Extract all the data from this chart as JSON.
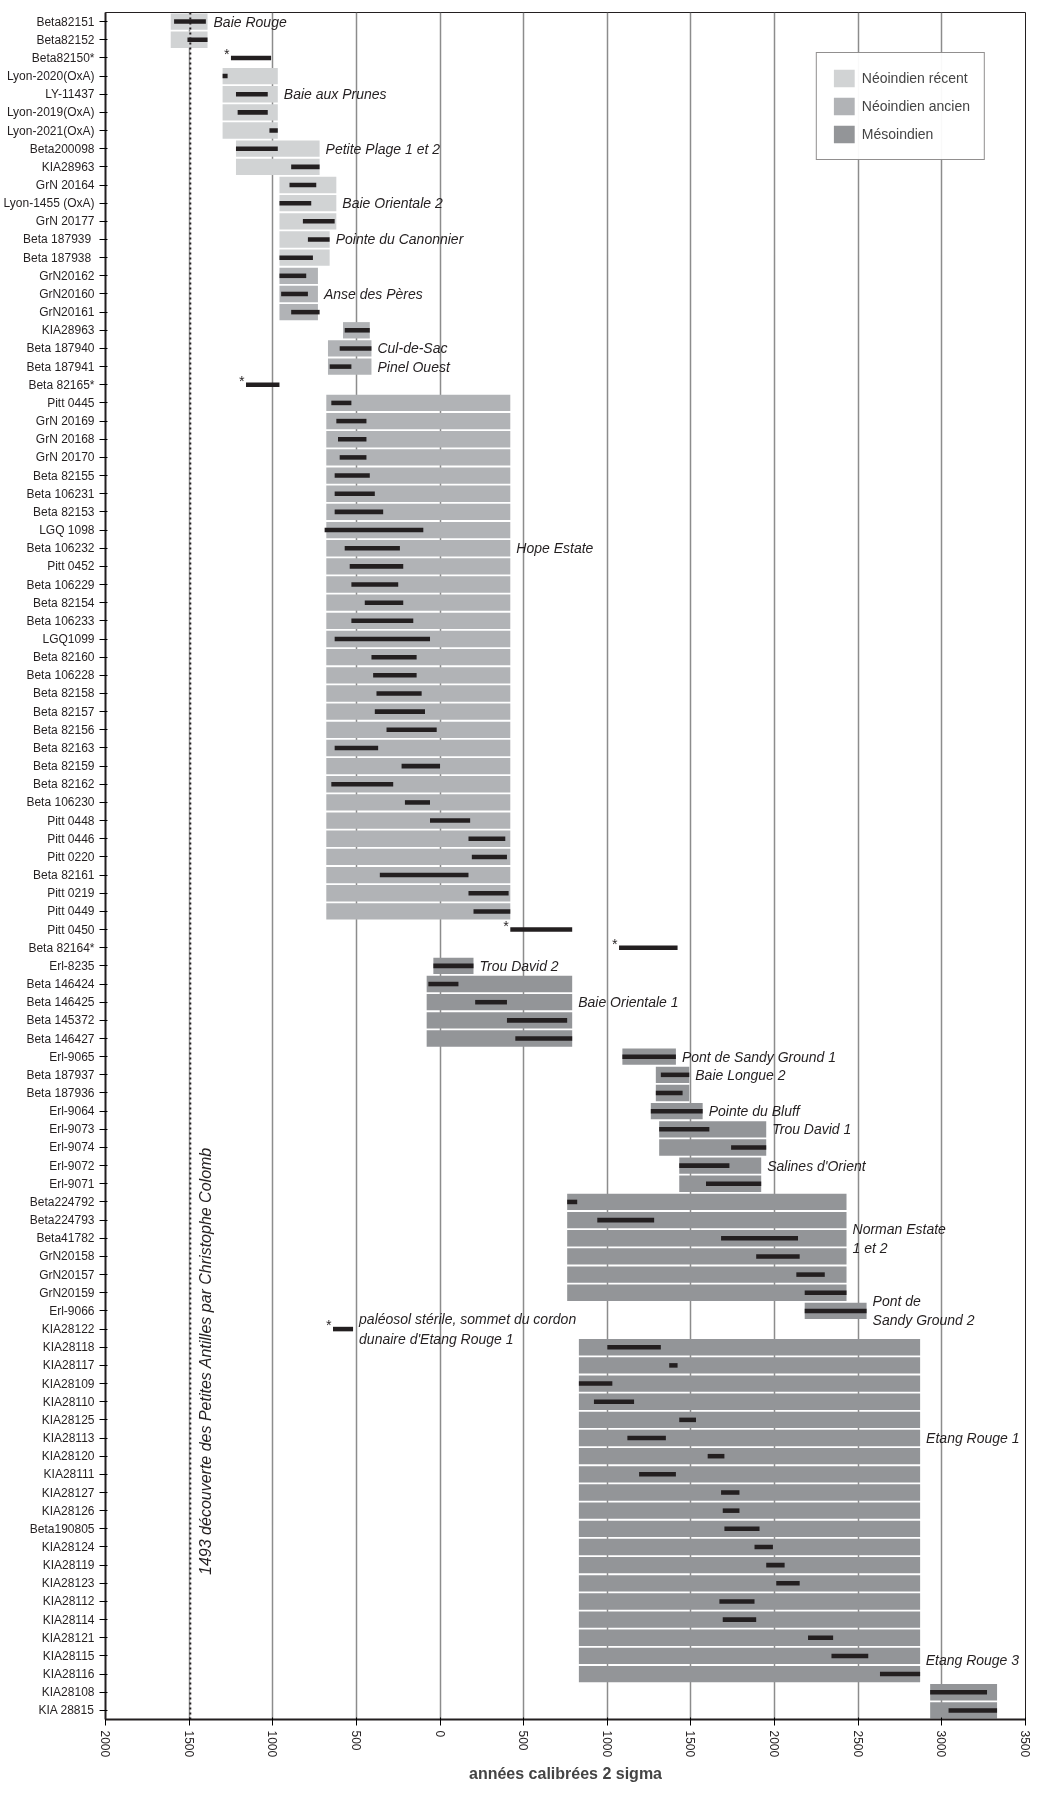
{
  "chart_data": {
    "type": "bar",
    "orientation": "horizontal",
    "xlabel": "années calibrées 2 sigma",
    "categories": [
      "Beta82151",
      "Beta82152",
      "Beta82150*",
      "Lyon-2020(OxA)",
      "LY-11437",
      "Lyon-2019(OxA)",
      "Lyon-2021(OxA)",
      "Beta200098",
      "KIA28963",
      "GrN 20164",
      "Lyon-1455 (OxA)",
      "GrN 20177",
      "Beta  187939",
      "Beta  187938",
      "GrN20162",
      "GrN20160",
      "GrN20161",
      "KIA28963",
      "Beta 187940",
      "Beta 187941",
      "Beta 82165*",
      "Pitt 0445",
      "GrN 20169",
      "GrN 20168",
      "GrN 20170",
      "Beta 82155",
      "Beta 106231",
      "Beta 82153",
      "LGQ 1098",
      "Beta 106232",
      "Pitt 0452",
      "Beta 106229",
      "Beta 82154",
      "Beta 106233",
      "LGQ1099",
      "Beta 82160",
      "Beta 106228",
      "Beta 82158",
      "Beta 82157",
      "Beta 82156",
      "Beta 82163",
      "Beta 82159",
      "Beta 82162",
      "Beta 106230",
      "Pitt 0448",
      "Pitt 0446",
      "Pitt 0220",
      "Beta 82161",
      "Pitt 0219",
      "Pitt 0449",
      "Pitt 0450",
      "Beta 82164*",
      "Erl-8235",
      "Beta 146424",
      "Beta 146425",
      "Beta 145372",
      "Beta 146427",
      "Erl-9065",
      "Beta 187937",
      "Beta 187936",
      "Erl-9064",
      "Erl-9073",
      "Erl-9074",
      "Erl-9072",
      "Erl-9071",
      "Beta224792",
      "Beta224793",
      "Beta41782",
      "GrN20158",
      "GrN20157",
      "GrN20159",
      "Erl-9066",
      "KIA28122",
      "KIA28118",
      "KIA28117",
      "KIA28109",
      "KIA28110",
      "KIA28125",
      "KIA28113",
      "KIA28120",
      "KIA28111",
      "KIA28127",
      "KIA28126",
      "Beta190805",
      "KIA28124",
      "KIA28119",
      "KIA28123",
      "KIA28112",
      "KIA28114",
      "KIA28121",
      "KIA28115",
      "KIA28116",
      "KIA28108",
      "KIA 28815"
    ],
    "series": [
      {
        "name": "Néoindien récent",
        "color": "#d1d3d4",
        "base": [
          -1610,
          -1610,
          null,
          -1300,
          -1300,
          -1300,
          -1300,
          -1220,
          -1220,
          -960,
          -960,
          -960,
          -960,
          -960,
          null,
          null,
          null,
          null,
          null,
          null,
          null,
          null,
          null,
          null,
          null,
          null,
          null,
          null,
          null,
          null,
          null,
          null,
          null,
          null,
          null,
          null,
          null,
          null,
          null,
          null,
          null,
          null,
          null,
          null,
          null,
          null,
          null,
          null,
          null,
          null,
          null,
          null,
          null,
          null,
          null,
          null,
          null,
          null,
          null,
          null,
          null,
          null,
          null,
          null,
          null,
          null,
          null,
          null,
          null,
          null,
          null,
          null,
          null,
          null,
          null,
          null,
          null,
          null,
          null,
          null,
          null,
          null,
          null,
          null,
          null,
          null,
          null,
          null,
          null,
          null,
          null,
          null,
          null,
          null
        ],
        "values": [
          220,
          220,
          null,
          330,
          330,
          330,
          330,
          500,
          500,
          340,
          340,
          340,
          300,
          300,
          null,
          null,
          null,
          null,
          null,
          null,
          null,
          null,
          null,
          null,
          null,
          null,
          null,
          null,
          null,
          null,
          null,
          null,
          null,
          null,
          null,
          null,
          null,
          null,
          null,
          null,
          null,
          null,
          null,
          null,
          null,
          null,
          null,
          null,
          null,
          null,
          null,
          null,
          null,
          null,
          null,
          null,
          null,
          null,
          null,
          null,
          null,
          null,
          null,
          null,
          null,
          null,
          null,
          null,
          null,
          null,
          null,
          null,
          null,
          null,
          null,
          null,
          null,
          null,
          null,
          null,
          null,
          null,
          null,
          null,
          null,
          null,
          null,
          null,
          null,
          null,
          null,
          null,
          null,
          null
        ]
      },
      {
        "name": "Néoindien ancien",
        "color": "#b1b3b6",
        "base": [
          null,
          null,
          null,
          null,
          null,
          null,
          null,
          null,
          null,
          null,
          null,
          null,
          null,
          null,
          -960,
          -960,
          -960,
          -580,
          -670,
          -670,
          null,
          -680,
          -680,
          -680,
          -680,
          -680,
          -680,
          -680,
          -680,
          -680,
          -680,
          -680,
          -680,
          -680,
          -680,
          -680,
          -680,
          -680,
          -680,
          -680,
          -680,
          -680,
          -680,
          -680,
          -680,
          -680,
          -680,
          -680,
          -680,
          -680,
          null,
          null,
          null,
          null,
          null,
          null,
          null,
          null,
          null,
          null,
          null,
          null,
          null,
          null,
          null,
          null,
          null,
          null,
          null,
          null,
          null,
          null,
          null,
          null,
          null,
          null,
          null,
          null,
          null,
          null,
          null,
          null,
          null,
          null,
          null,
          null,
          null,
          null,
          null,
          null,
          null,
          null,
          null,
          null
        ],
        "values": [
          null,
          null,
          null,
          null,
          null,
          null,
          null,
          null,
          null,
          null,
          null,
          null,
          null,
          null,
          230,
          230,
          230,
          160,
          260,
          260,
          null,
          1100,
          1100,
          1100,
          1100,
          1100,
          1100,
          1100,
          1100,
          1100,
          1100,
          1100,
          1100,
          1100,
          1100,
          1100,
          1100,
          1100,
          1100,
          1100,
          1100,
          1100,
          1100,
          1100,
          1100,
          1100,
          1100,
          1100,
          1100,
          1100,
          null,
          null,
          null,
          null,
          null,
          null,
          null,
          null,
          null,
          null,
          null,
          null,
          null,
          null,
          null,
          null,
          null,
          null,
          null,
          null,
          null,
          null,
          null,
          null,
          null,
          null,
          null,
          null,
          null,
          null,
          null,
          null,
          null,
          null,
          null,
          null,
          null,
          null,
          null,
          null,
          null,
          null,
          null,
          null
        ]
      },
      {
        "name": "Mésoindien",
        "color": "#939598",
        "base": [
          null,
          null,
          null,
          null,
          null,
          null,
          null,
          null,
          null,
          null,
          null,
          null,
          null,
          null,
          null,
          null,
          null,
          null,
          null,
          null,
          null,
          null,
          null,
          null,
          null,
          null,
          null,
          null,
          null,
          null,
          null,
          null,
          null,
          null,
          null,
          null,
          null,
          null,
          null,
          null,
          null,
          null,
          null,
          null,
          null,
          null,
          null,
          null,
          null,
          null,
          null,
          null,
          -40,
          -80,
          -80,
          -80,
          -80,
          1090,
          1290,
          1290,
          1260,
          1310,
          1310,
          1430,
          1430,
          760,
          760,
          760,
          760,
          760,
          760,
          2180,
          null,
          830,
          830,
          830,
          830,
          830,
          830,
          830,
          830,
          830,
          830,
          830,
          830,
          830,
          830,
          830,
          830,
          830,
          830,
          830,
          2930,
          2930
        ],
        "values": [
          null,
          null,
          null,
          null,
          null,
          null,
          null,
          null,
          null,
          null,
          null,
          null,
          null,
          null,
          null,
          null,
          null,
          null,
          null,
          null,
          null,
          null,
          null,
          null,
          null,
          null,
          null,
          null,
          null,
          null,
          null,
          null,
          null,
          null,
          null,
          null,
          null,
          null,
          null,
          null,
          null,
          null,
          null,
          null,
          null,
          null,
          null,
          null,
          null,
          null,
          null,
          null,
          240,
          870,
          870,
          870,
          870,
          320,
          200,
          200,
          310,
          640,
          640,
          490,
          490,
          1670,
          1670,
          1670,
          1670,
          1670,
          1670,
          370,
          null,
          2040,
          2040,
          2040,
          2040,
          2040,
          2040,
          2040,
          2040,
          2040,
          2040,
          2040,
          2040,
          2040,
          2040,
          2040,
          2040,
          2040,
          2040,
          2040,
          400,
          400
        ]
      },
      {
        "color": "#231f20",
        "base": [
          -1590,
          -1510,
          -1250,
          -1300,
          -1220,
          -1210,
          -1020,
          -1220,
          -890,
          -900,
          -960,
          -820,
          -790,
          -960,
          -960,
          -950,
          -890,
          -570,
          -600,
          -660,
          -1160,
          -650,
          -620,
          -610,
          -600,
          -630,
          -630,
          -630,
          -690,
          -570,
          -540,
          -530,
          -450,
          -530,
          -630,
          -410,
          -400,
          -380,
          -390,
          -320,
          -630,
          -230,
          -650,
          -210,
          -60,
          170,
          190,
          -360,
          170,
          200,
          420,
          1070,
          -40,
          -70,
          210,
          400,
          450,
          1090,
          1320,
          1290,
          1260,
          1310,
          1740,
          1430,
          1590,
          760,
          940,
          1680,
          1890,
          2130,
          2180,
          2180,
          -640,
          1000,
          1370,
          830,
          920,
          1430,
          1120,
          1600,
          1190,
          1680,
          1690,
          1700,
          1880,
          1950,
          2010,
          1670,
          1690,
          2200,
          2340,
          2630,
          2930,
          3040
        ],
        "values": [
          190,
          120,
          240,
          30,
          190,
          180,
          50,
          250,
          170,
          160,
          190,
          190,
          130,
          200,
          160,
          160,
          170,
          150,
          190,
          130,
          200,
          120,
          180,
          170,
          160,
          210,
          240,
          290,
          590,
          330,
          320,
          280,
          230,
          370,
          570,
          270,
          260,
          270,
          300,
          300,
          260,
          230,
          370,
          150,
          240,
          220,
          210,
          530,
          240,
          220,
          370,
          350,
          240,
          180,
          190,
          360,
          340,
          320,
          170,
          160,
          310,
          300,
          210,
          300,
          330,
          60,
          340,
          460,
          260,
          170,
          250,
          370,
          120,
          320,
          50,
          200,
          240,
          100,
          230,
          100,
          220,
          110,
          100,
          210,
          110,
          110,
          140,
          210,
          200,
          150,
          220,
          240,
          340,
          290
        ]
      }
    ],
    "xlim": [
      -2000,
      3500
    ],
    "xticks": [
      {
        "value": -2000,
        "label": "2000"
      },
      {
        "value": -1500,
        "label": "1500"
      },
      {
        "value": -1000,
        "label": "1000"
      },
      {
        "value": -500,
        "label": "500"
      },
      0,
      500,
      1000,
      1500,
      2000,
      2500,
      3000,
      3500
    ],
    "grid": "x",
    "legend": "top right",
    "ref_lines": [
      {
        "axis": "x",
        "value": -1493,
        "label": "1493 découverte des Petites Antilles par Christophe Colomb",
        "color": "#231f20",
        "line_style": "dotted"
      }
    ],
    "annotations": [
      {
        "text": "Baie Rouge",
        "x": -1390,
        "y": "Beta82151"
      },
      {
        "text": "Baie aux Prunes",
        "x": -970,
        "y": "LY-11437"
      },
      {
        "text": "Petite Plage 1 et 2",
        "x": -720,
        "y": "Beta200098"
      },
      {
        "text": "Baie Orientale 2",
        "x": -620,
        "y": "Lyon-1455 (OxA)"
      },
      {
        "text": "Pointe du Canonnier",
        "x": -660,
        "y": "Beta  187939"
      },
      {
        "text": "Anse des Pères",
        "x": -730,
        "y": "GrN20160"
      },
      {
        "text": "Cul-de-Sac",
        "x": -410,
        "y": "Beta 187940"
      },
      {
        "text": "Pinel Ouest",
        "x": -410,
        "y": "Beta 187941"
      },
      {
        "text": "Hope Estate",
        "x": 420,
        "y": "Beta 106232"
      },
      {
        "text": "Trou David 2",
        "x": 200,
        "y": "Erl-8235"
      },
      {
        "text": "Baie Orientale 1",
        "x": 790,
        "y": "Beta 146425"
      },
      {
        "text": "Pont de Sandy Ground 1",
        "x": 1410,
        "y": "Erl-9065"
      },
      {
        "text": "Baie Longue 2",
        "x": 1490,
        "y": "Beta 187937"
      },
      {
        "text": "Pointe du Bluff",
        "x": 1570,
        "y": "Erl-9064"
      },
      {
        "text": "Trou David 1",
        "x": 1950,
        "y": "Erl-9073"
      },
      {
        "text": "Salines d'Orient",
        "x": 1920,
        "y": "Erl-9072"
      },
      {
        "text": "Norman Estate\n1 et 2",
        "x": 2430,
        "y": "Beta41782"
      },
      {
        "text": "Pont de\nSandy Ground 2",
        "x": 2550,
        "y": "Erl-9066"
      },
      {
        "text": "Etang Rouge 1",
        "x": 2870,
        "y": "KIA28113"
      },
      {
        "text": "Etang Rouge 3",
        "x": 3330,
        "y": "KIA28108"
      },
      {
        "text": "paléosol stérile, sommet du cordon\ndunaire d'Etang Rouge 1",
        "x": -520,
        "y": "KIA28122"
      },
      {
        "text": "*",
        "x": -1250,
        "y": "Beta82150*"
      },
      {
        "text": "*",
        "x": -1160,
        "y": "Beta 82165*"
      },
      {
        "text": "*",
        "x": 420,
        "y": "Pitt 0450"
      },
      {
        "text": "*",
        "x": 1070,
        "y": "Beta 82164*"
      },
      {
        "text": "*",
        "x": -640,
        "y": "KIA28122"
      }
    ]
  }
}
